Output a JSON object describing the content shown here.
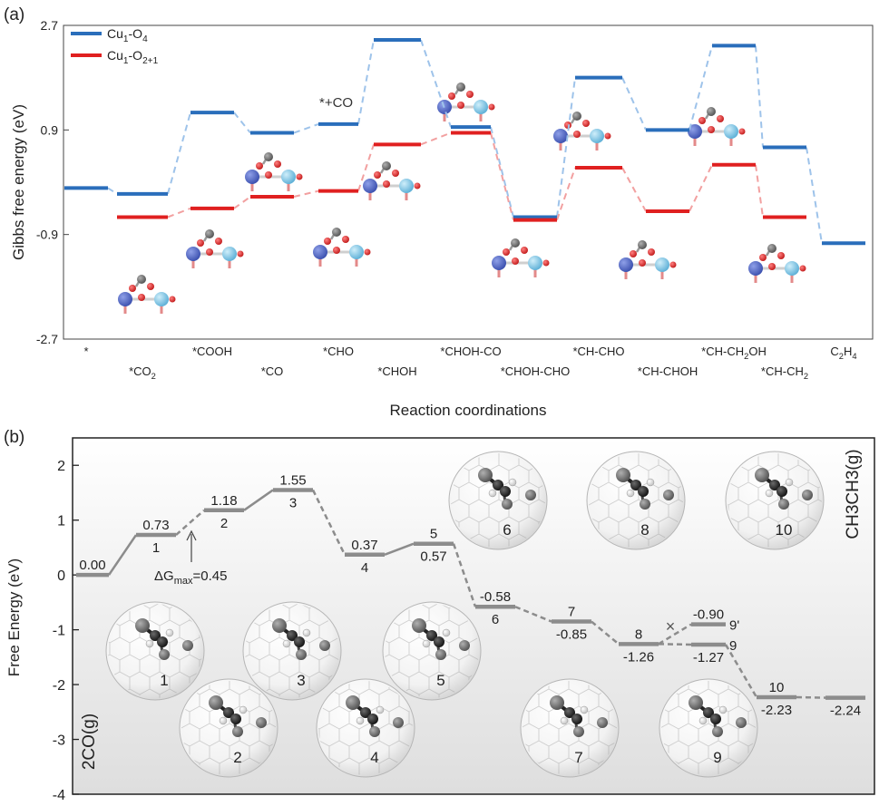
{
  "panel_a": {
    "tag": "(a)",
    "xlabel": "Reaction coordinations",
    "ylabel": "Gibbs free energy (eV)",
    "annotation": "*+CO"
  },
  "panel_b": {
    "tag": "(b)",
    "ylabel": "Free Energy (eV)",
    "start_label": "2CO(g)",
    "end_label": "CH3CH3(g)",
    "dgmax_label": "ΔG",
    "dgmax_sub": "max",
    "dgmax_value": "=0.45",
    "blocked_mark": "×"
  },
  "chart_data": [
    {
      "type": "line",
      "title": "",
      "xlabel": "Reaction coordinations",
      "ylabel": "Gibbs free energy (eV)",
      "ylim": [
        -2.7,
        2.7
      ],
      "yticks": [
        "2.7",
        "0.9",
        "-0.9",
        "-2.7"
      ],
      "grid": false,
      "legend_position": "top-left",
      "categories": [
        "*",
        "*CO2",
        "*COOH",
        "*CO",
        "*CHO",
        "*CHOH",
        "*CHOH-CO",
        "*CHOH-CHO",
        "*CH-CHO",
        "*CH-CHOH",
        "*CH-CH2OH",
        "*CH-CH2",
        "C2H4"
      ],
      "series": [
        {
          "name": "Cu1-O4",
          "color": "#2a6ebb",
          "values": [
            -0.1,
            -0.2,
            1.2,
            0.85,
            1.0,
            2.45,
            0.95,
            -0.6,
            1.8,
            0.9,
            2.35,
            0.6,
            -1.05
          ]
        },
        {
          "name": "Cu1-O2+1",
          "color": "#e02020",
          "values": [
            null,
            -0.6,
            -0.45,
            -0.25,
            -0.15,
            0.65,
            0.85,
            -0.65,
            0.25,
            -0.5,
            0.3,
            -0.6,
            null
          ]
        }
      ]
    },
    {
      "type": "line",
      "title": "",
      "xlabel": "",
      "ylabel": "Free Energy (eV)",
      "ylim": [
        -4,
        2.5
      ],
      "yticks": [
        "2",
        "1",
        "0",
        "-1",
        "-2",
        "-3",
        "-4"
      ],
      "grid": false,
      "color": "#8c8c8c",
      "points": [
        {
          "state": "2CO(g)",
          "value": 0.0,
          "value_label": "0.00",
          "state_label": ""
        },
        {
          "state": "1",
          "value": 0.73,
          "value_label": "0.73",
          "state_label": "1"
        },
        {
          "state": "2",
          "value": 1.18,
          "value_label": "1.18",
          "state_label": "2"
        },
        {
          "state": "3",
          "value": 1.55,
          "value_label": "1.55",
          "state_label": "3"
        },
        {
          "state": "4",
          "value": 0.37,
          "value_label": "0.37",
          "state_label": "4"
        },
        {
          "state": "5",
          "value": 0.57,
          "value_label": "0.57",
          "state_label": "5"
        },
        {
          "state": "6",
          "value": -0.58,
          "value_label": "-0.58",
          "state_label": "6"
        },
        {
          "state": "7",
          "value": -0.85,
          "value_label": "-0.85",
          "state_label": "7"
        },
        {
          "state": "8",
          "value": -1.26,
          "value_label": "-1.26",
          "state_label": "8"
        },
        {
          "state": "9'",
          "value": -0.9,
          "value_label": "-0.90",
          "state_label": "9'"
        },
        {
          "state": "9",
          "value": -1.27,
          "value_label": "-1.27",
          "state_label": "9"
        },
        {
          "state": "10",
          "value": -2.23,
          "value_label": "-2.23",
          "state_label": "10"
        },
        {
          "state": "CH3CH3(g)",
          "value": -2.24,
          "value_label": "-2.24",
          "state_label": ""
        }
      ],
      "structure_labels": [
        "1",
        "2",
        "3",
        "4",
        "5",
        "6",
        "7",
        "8",
        "9",
        "10"
      ]
    }
  ]
}
